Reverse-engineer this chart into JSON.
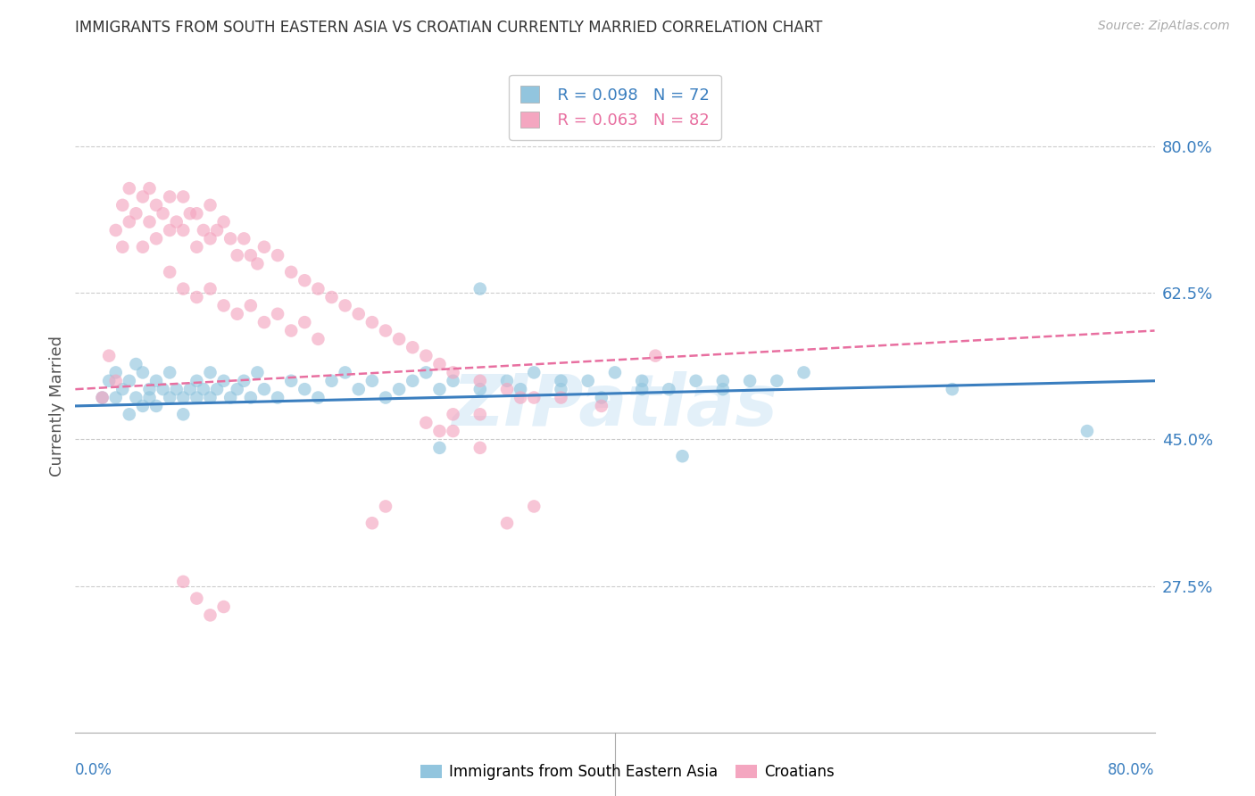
{
  "title": "IMMIGRANTS FROM SOUTH EASTERN ASIA VS CROATIAN CURRENTLY MARRIED CORRELATION CHART",
  "source": "Source: ZipAtlas.com",
  "ylabel": "Currently Married",
  "ytick_labels": [
    "80.0%",
    "62.5%",
    "45.0%",
    "27.5%"
  ],
  "ytick_values": [
    0.8,
    0.625,
    0.45,
    0.275
  ],
  "xlim": [
    0.0,
    0.8
  ],
  "ylim": [
    0.1,
    0.88
  ],
  "legend_r1": "R = 0.098",
  "legend_n1": "N = 72",
  "legend_r2": "R = 0.063",
  "legend_n2": "N = 82",
  "color_blue": "#92c5de",
  "color_pink": "#f4a6c0",
  "color_blue_line": "#3a7ebf",
  "color_pink_line": "#e86fa0",
  "color_blue_text": "#3a7ebf",
  "color_pink_text": "#e86fa0",
  "color_grid": "#cccccc",
  "watermark": "ZIPatlas",
  "blue_line_y0": 0.49,
  "blue_line_y1": 0.52,
  "pink_line_y0": 0.51,
  "pink_line_y1": 0.58,
  "blue_x": [
    0.02,
    0.025,
    0.03,
    0.03,
    0.035,
    0.04,
    0.04,
    0.045,
    0.045,
    0.05,
    0.05,
    0.055,
    0.055,
    0.06,
    0.06,
    0.065,
    0.07,
    0.07,
    0.075,
    0.08,
    0.08,
    0.085,
    0.09,
    0.09,
    0.095,
    0.1,
    0.1,
    0.105,
    0.11,
    0.115,
    0.12,
    0.125,
    0.13,
    0.135,
    0.14,
    0.15,
    0.16,
    0.17,
    0.18,
    0.19,
    0.2,
    0.21,
    0.22,
    0.23,
    0.24,
    0.25,
    0.26,
    0.27,
    0.28,
    0.3,
    0.32,
    0.34,
    0.36,
    0.38,
    0.4,
    0.42,
    0.44,
    0.46,
    0.48,
    0.5,
    0.52,
    0.54,
    0.27,
    0.3,
    0.33,
    0.36,
    0.39,
    0.42,
    0.45,
    0.48,
    0.65,
    0.75
  ],
  "blue_y": [
    0.5,
    0.52,
    0.5,
    0.53,
    0.51,
    0.48,
    0.52,
    0.5,
    0.54,
    0.49,
    0.53,
    0.51,
    0.5,
    0.52,
    0.49,
    0.51,
    0.5,
    0.53,
    0.51,
    0.5,
    0.48,
    0.51,
    0.5,
    0.52,
    0.51,
    0.5,
    0.53,
    0.51,
    0.52,
    0.5,
    0.51,
    0.52,
    0.5,
    0.53,
    0.51,
    0.5,
    0.52,
    0.51,
    0.5,
    0.52,
    0.53,
    0.51,
    0.52,
    0.5,
    0.51,
    0.52,
    0.53,
    0.51,
    0.52,
    0.51,
    0.52,
    0.53,
    0.51,
    0.52,
    0.53,
    0.52,
    0.51,
    0.52,
    0.51,
    0.52,
    0.52,
    0.53,
    0.44,
    0.63,
    0.51,
    0.52,
    0.5,
    0.51,
    0.43,
    0.52,
    0.51,
    0.46
  ],
  "pink_x": [
    0.02,
    0.025,
    0.03,
    0.03,
    0.035,
    0.035,
    0.04,
    0.04,
    0.045,
    0.05,
    0.05,
    0.055,
    0.055,
    0.06,
    0.06,
    0.065,
    0.07,
    0.07,
    0.075,
    0.08,
    0.08,
    0.085,
    0.09,
    0.09,
    0.095,
    0.1,
    0.1,
    0.105,
    0.11,
    0.115,
    0.12,
    0.125,
    0.13,
    0.135,
    0.14,
    0.15,
    0.16,
    0.17,
    0.18,
    0.19,
    0.2,
    0.21,
    0.22,
    0.23,
    0.24,
    0.25,
    0.26,
    0.27,
    0.28,
    0.3,
    0.32,
    0.34,
    0.3,
    0.33,
    0.36,
    0.39,
    0.43,
    0.07,
    0.08,
    0.09,
    0.1,
    0.11,
    0.12,
    0.13,
    0.14,
    0.15,
    0.16,
    0.17,
    0.18,
    0.26,
    0.27,
    0.28,
    0.22,
    0.23,
    0.08,
    0.09,
    0.1,
    0.11,
    0.28,
    0.3,
    0.32,
    0.34
  ],
  "pink_y": [
    0.5,
    0.55,
    0.52,
    0.7,
    0.68,
    0.73,
    0.71,
    0.75,
    0.72,
    0.68,
    0.74,
    0.71,
    0.75,
    0.73,
    0.69,
    0.72,
    0.7,
    0.74,
    0.71,
    0.7,
    0.74,
    0.72,
    0.68,
    0.72,
    0.7,
    0.69,
    0.73,
    0.7,
    0.71,
    0.69,
    0.67,
    0.69,
    0.67,
    0.66,
    0.68,
    0.67,
    0.65,
    0.64,
    0.63,
    0.62,
    0.61,
    0.6,
    0.59,
    0.58,
    0.57,
    0.56,
    0.55,
    0.54,
    0.53,
    0.52,
    0.51,
    0.5,
    0.48,
    0.5,
    0.5,
    0.49,
    0.55,
    0.65,
    0.63,
    0.62,
    0.63,
    0.61,
    0.6,
    0.61,
    0.59,
    0.6,
    0.58,
    0.59,
    0.57,
    0.47,
    0.46,
    0.48,
    0.35,
    0.37,
    0.28,
    0.26,
    0.24,
    0.25,
    0.46,
    0.44,
    0.35,
    0.37
  ]
}
